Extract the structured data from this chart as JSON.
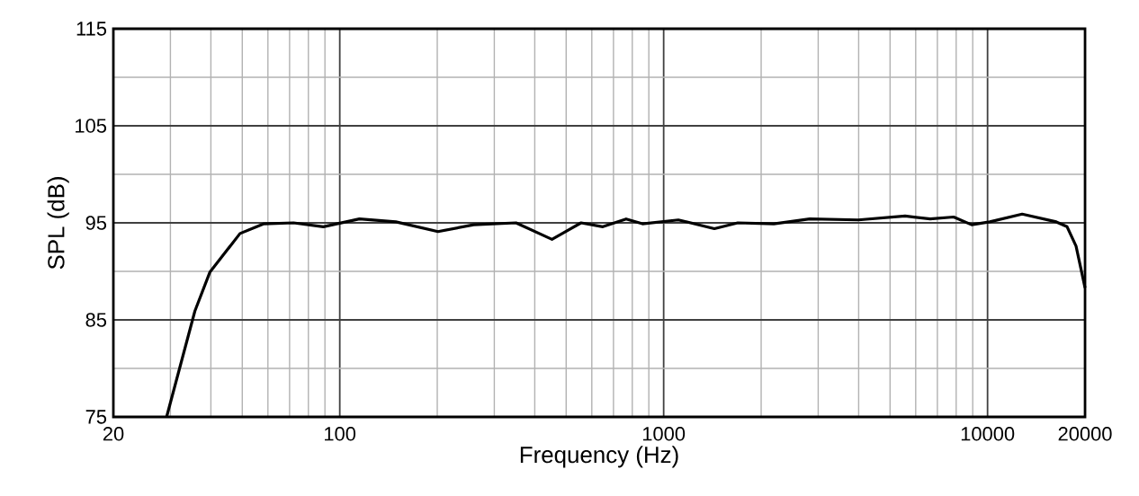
{
  "chart_data": {
    "type": "line",
    "xlabel": "Frequency (Hz)",
    "ylabel": "SPL (dB)",
    "log": "x",
    "xlim": [
      20,
      20000
    ],
    "ylim": [
      75,
      115
    ],
    "xticks": [
      20,
      100,
      1000,
      10000,
      20000
    ],
    "yticks": [
      75,
      85,
      95,
      105,
      115
    ],
    "grid": true,
    "marker": "none",
    "line_style": "solid",
    "series": [
      {
        "color": "#000000",
        "x": [
          29.2,
          35.7,
          39.7,
          49.2,
          58.3,
          72,
          89,
          115,
          149,
          201,
          259,
          350,
          452,
          556,
          649,
          766,
          860,
          1110,
          1434,
          1694,
          2188,
          2825,
          3990,
          5565,
          6650,
          7860,
          8930,
          10160,
          12790,
          16300,
          17600,
          18760,
          20000
        ],
        "values": [
          75,
          85.9,
          89.9,
          93.9,
          94.9,
          95,
          94.6,
          95.4,
          95.1,
          94.1,
          94.8,
          95,
          93.3,
          95,
          94.6,
          95.4,
          94.9,
          95.3,
          94.4,
          95,
          94.9,
          95.4,
          95.3,
          95.7,
          95.4,
          95.6,
          94.8,
          95.1,
          95.9,
          95.1,
          94.6,
          92.6,
          88.3
        ]
      }
    ]
  }
}
